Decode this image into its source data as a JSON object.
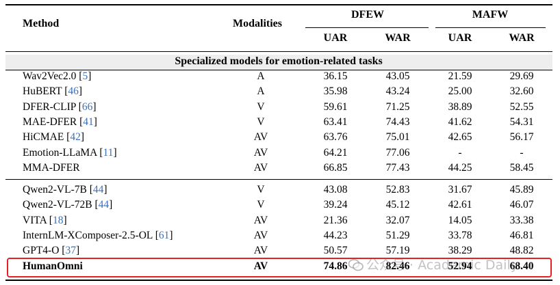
{
  "header": {
    "method": "Method",
    "modalities": "Modalities",
    "group1": "DFEW",
    "group2": "MAFW",
    "metrics": [
      "UAR",
      "WAR",
      "UAR",
      "WAR"
    ]
  },
  "section1_title": "Specialized models for emotion-related tasks",
  "rows_specialized": [
    {
      "method": "Wav2Vec2.0",
      "cite": "5",
      "mod": "A",
      "vals": [
        "36.15",
        "43.05",
        "21.59",
        "29.69"
      ]
    },
    {
      "method": "HuBERT",
      "cite": "46",
      "mod": "A",
      "vals": [
        "35.98",
        "43.24",
        "25.00",
        "32.60"
      ]
    },
    {
      "method": "DFER-CLIP",
      "cite": "66",
      "mod": "V",
      "vals": [
        "59.61",
        "71.25",
        "38.89",
        "52.55"
      ]
    },
    {
      "method": "MAE-DFER",
      "cite": "41",
      "mod": "V",
      "vals": [
        "63.41",
        "74.43",
        "41.62",
        "54.31"
      ]
    },
    {
      "method": "HiCMAE",
      "cite": "42",
      "mod": "AV",
      "vals": [
        "63.76",
        "75.01",
        "42.65",
        "56.17"
      ]
    },
    {
      "method": "Emotion-LLaMA",
      "cite": "11",
      "mod": "AV",
      "vals": [
        "64.21",
        "77.06",
        "-",
        "-"
      ]
    },
    {
      "method": "MMA-DFER",
      "cite": "",
      "mod": "AV",
      "vals": [
        "66.85",
        "77.43",
        "44.25",
        "58.45"
      ]
    }
  ],
  "rows_general": [
    {
      "method": "Qwen2-VL-7B",
      "cite": "44",
      "mod": "V",
      "vals": [
        "43.08",
        "52.83",
        "31.67",
        "45.89"
      ]
    },
    {
      "method": "Qwen2-VL-72B",
      "cite": "44",
      "mod": "V",
      "vals": [
        "39.24",
        "45.12",
        "42.61",
        "46.07"
      ]
    },
    {
      "method": "VITA",
      "cite": "18",
      "mod": "AV",
      "vals": [
        "21.36",
        "32.07",
        "14.05",
        "33.38"
      ]
    },
    {
      "method": "InternLM-XComposer-2.5-OL",
      "cite": "61",
      "mod": "AV",
      "vals": [
        "44.23",
        "51.29",
        "33.78",
        "46.81"
      ]
    },
    {
      "method": "GPT4-O",
      "cite": "37",
      "mod": "AV",
      "vals": [
        "50.57",
        "57.19",
        "38.29",
        "48.82"
      ]
    }
  ],
  "row_ours": {
    "method": "HumanOmni",
    "mod": "AV",
    "vals": [
      "74.86",
      "82.46",
      "52.94",
      "68.40"
    ]
  },
  "watermark": "公众号 · Academic Daily",
  "highlight_color": "#e02222",
  "cite_color": "#3b6fb5"
}
